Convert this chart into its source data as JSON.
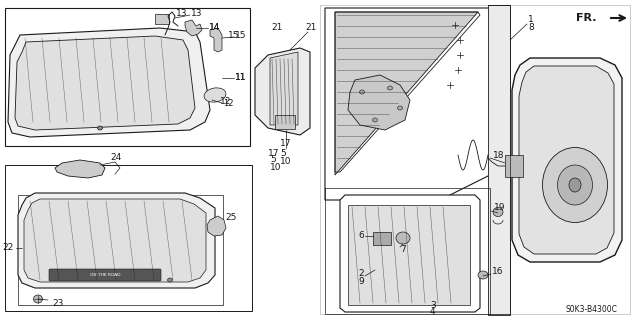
{
  "bg_color": "#ffffff",
  "diagram_code": "S0K3-B4300C",
  "fr_label": "FR.",
  "line_color": "#1a1a1a",
  "label_fontsize": 6.5,
  "fig_w": 6.4,
  "fig_h": 3.19
}
